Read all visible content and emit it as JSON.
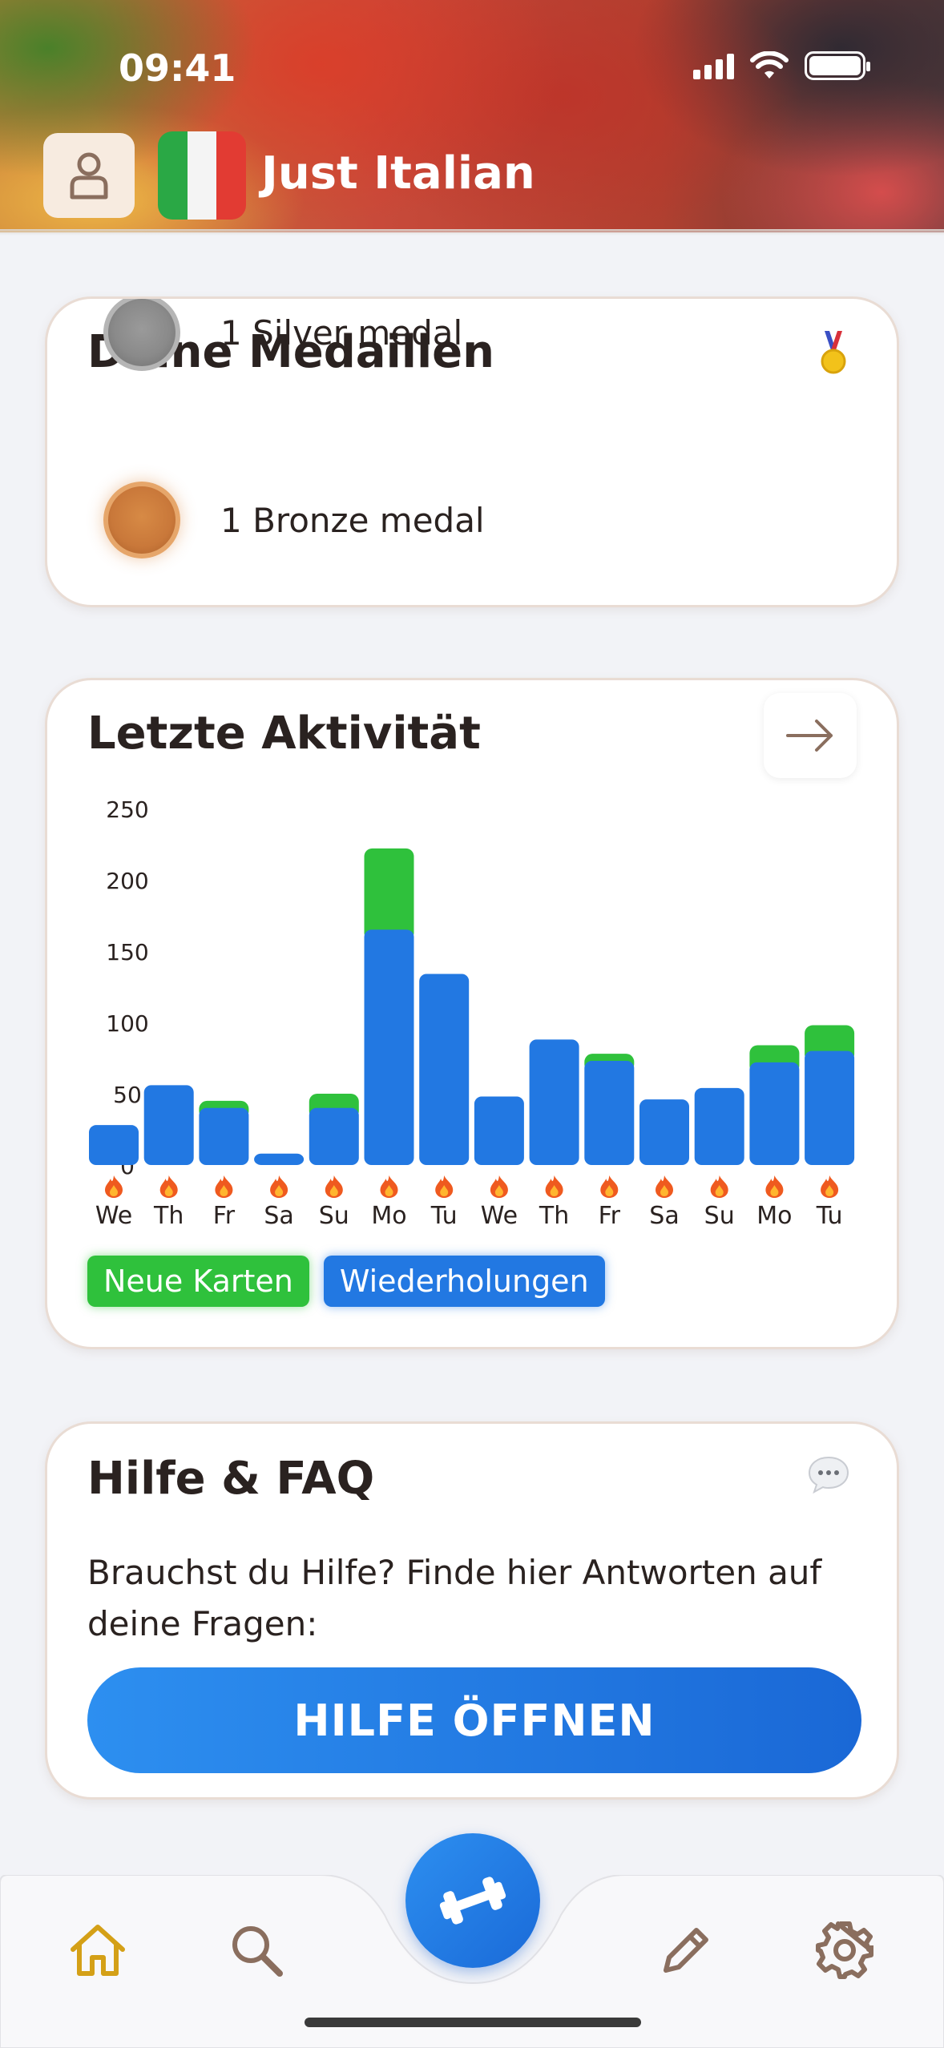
{
  "status_bar": {
    "time": "09:41"
  },
  "header": {
    "title": "Just Italian",
    "profile_icon": "user-icon",
    "flag_icon": "italian-flag-icon"
  },
  "medals": {
    "title": "Deine Medaillen",
    "icon": "medal-icon",
    "items": [
      {
        "label": "1 Silver medal",
        "color": "#8a8a8a"
      },
      {
        "label": "1 Bronze medal",
        "color": "#c9783a"
      }
    ]
  },
  "activity": {
    "title": "Letzte Aktivität",
    "arrow_icon": "arrow-right-icon",
    "legend": {
      "new": "Neue Karten",
      "reviews": "Wiederholungen"
    },
    "streak_icon": "flame-icon"
  },
  "chart_data": {
    "type": "bar",
    "stacked": true,
    "categories": [
      "We",
      "Th",
      "Fr",
      "Sa",
      "Su",
      "Mo",
      "Tu",
      "We",
      "Th",
      "Fr",
      "Sa",
      "Su",
      "Mo",
      "Tu"
    ],
    "series": [
      {
        "name": "Wiederholungen",
        "color": "#2278e2",
        "values": [
          28,
          56,
          40,
          8,
          40,
          165,
          134,
          48,
          88,
          73,
          46,
          54,
          72,
          80
        ]
      },
      {
        "name": "Neue Karten",
        "color": "#2fc13c",
        "values": [
          0,
          0,
          5,
          0,
          10,
          57,
          0,
          0,
          0,
          5,
          0,
          0,
          12,
          18
        ]
      }
    ],
    "yticks": [
      0,
      50,
      100,
      150,
      200,
      250
    ],
    "ylim": [
      0,
      250
    ],
    "xlabel": "",
    "ylabel": "",
    "grid": false,
    "legend": "bottom-left"
  },
  "help": {
    "title": "Hilfe & FAQ",
    "icon": "chat-bubble-icon",
    "text": "Brauchst du Hilfe? Finde hier Antworten auf deine Fragen:",
    "button_label": "HILFE ÖFFNEN"
  },
  "tabbar": {
    "items": [
      {
        "icon": "home-icon",
        "color": "#d4a017"
      },
      {
        "icon": "search-icon",
        "color": "#8a6e5e"
      },
      {
        "icon": "dumbbell-icon",
        "color": "#ffffff"
      },
      {
        "icon": "pencil-icon",
        "color": "#8a6e5e"
      },
      {
        "icon": "gear-icon",
        "color": "#8a6e5e"
      }
    ]
  }
}
